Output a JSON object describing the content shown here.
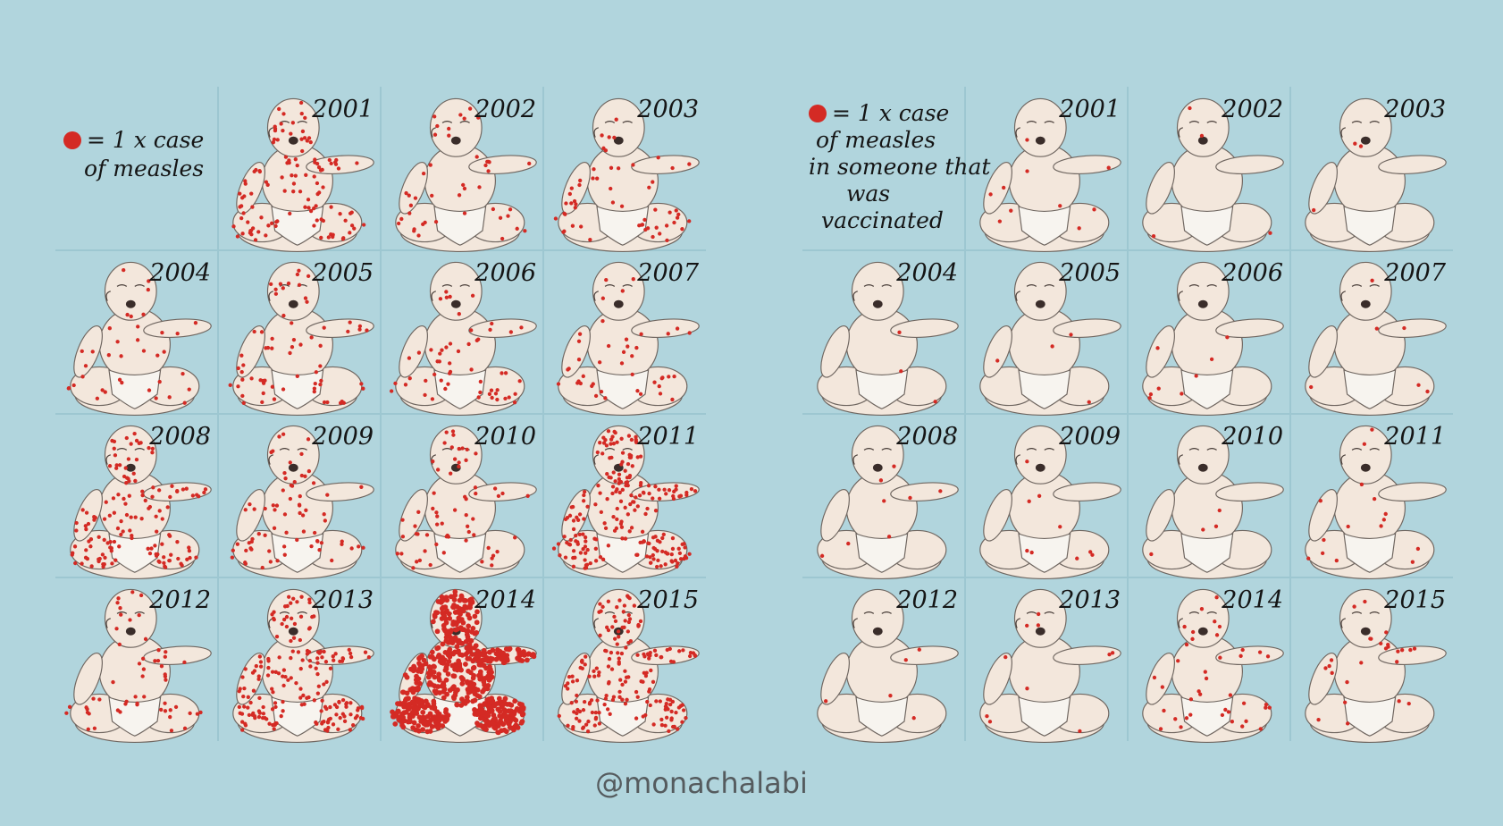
{
  "credit": "@monachalabi",
  "colors": {
    "background": "#b1d5dd",
    "dot": "#d42a24",
    "skin": "#f3e7dc",
    "outline": "#6f6660"
  },
  "icons": {
    "dot": "red-circle",
    "figure": "baby-figure"
  },
  "chart_data": [
    {
      "type": "pictogram",
      "legend": [
        "= 1 x  case",
        "of measles"
      ],
      "unit": "1 dot = 1 case",
      "categories": [
        "2001",
        "2002",
        "2003",
        "2004",
        "2005",
        "2006",
        "2007",
        "2008",
        "2009",
        "2010",
        "2011",
        "2012",
        "2013",
        "2014",
        "2015"
      ],
      "values": [
        116,
        44,
        56,
        37,
        66,
        55,
        43,
        140,
        71,
        63,
        220,
        55,
        187,
        667,
        188
      ]
    },
    {
      "type": "pictogram",
      "legend": [
        "= 1 x  case",
        "of measles",
        "in someone that",
        "was",
        "vaccinated"
      ],
      "unit": "1 dot = 1 case",
      "categories": [
        "2001",
        "2002",
        "2003",
        "2004",
        "2005",
        "2006",
        "2007",
        "2008",
        "2009",
        "2010",
        "2011",
        "2012",
        "2013",
        "2014",
        "2015"
      ],
      "values": [
        10,
        4,
        3,
        3,
        4,
        8,
        6,
        8,
        9,
        4,
        15,
        5,
        10,
        40,
        25
      ]
    }
  ]
}
